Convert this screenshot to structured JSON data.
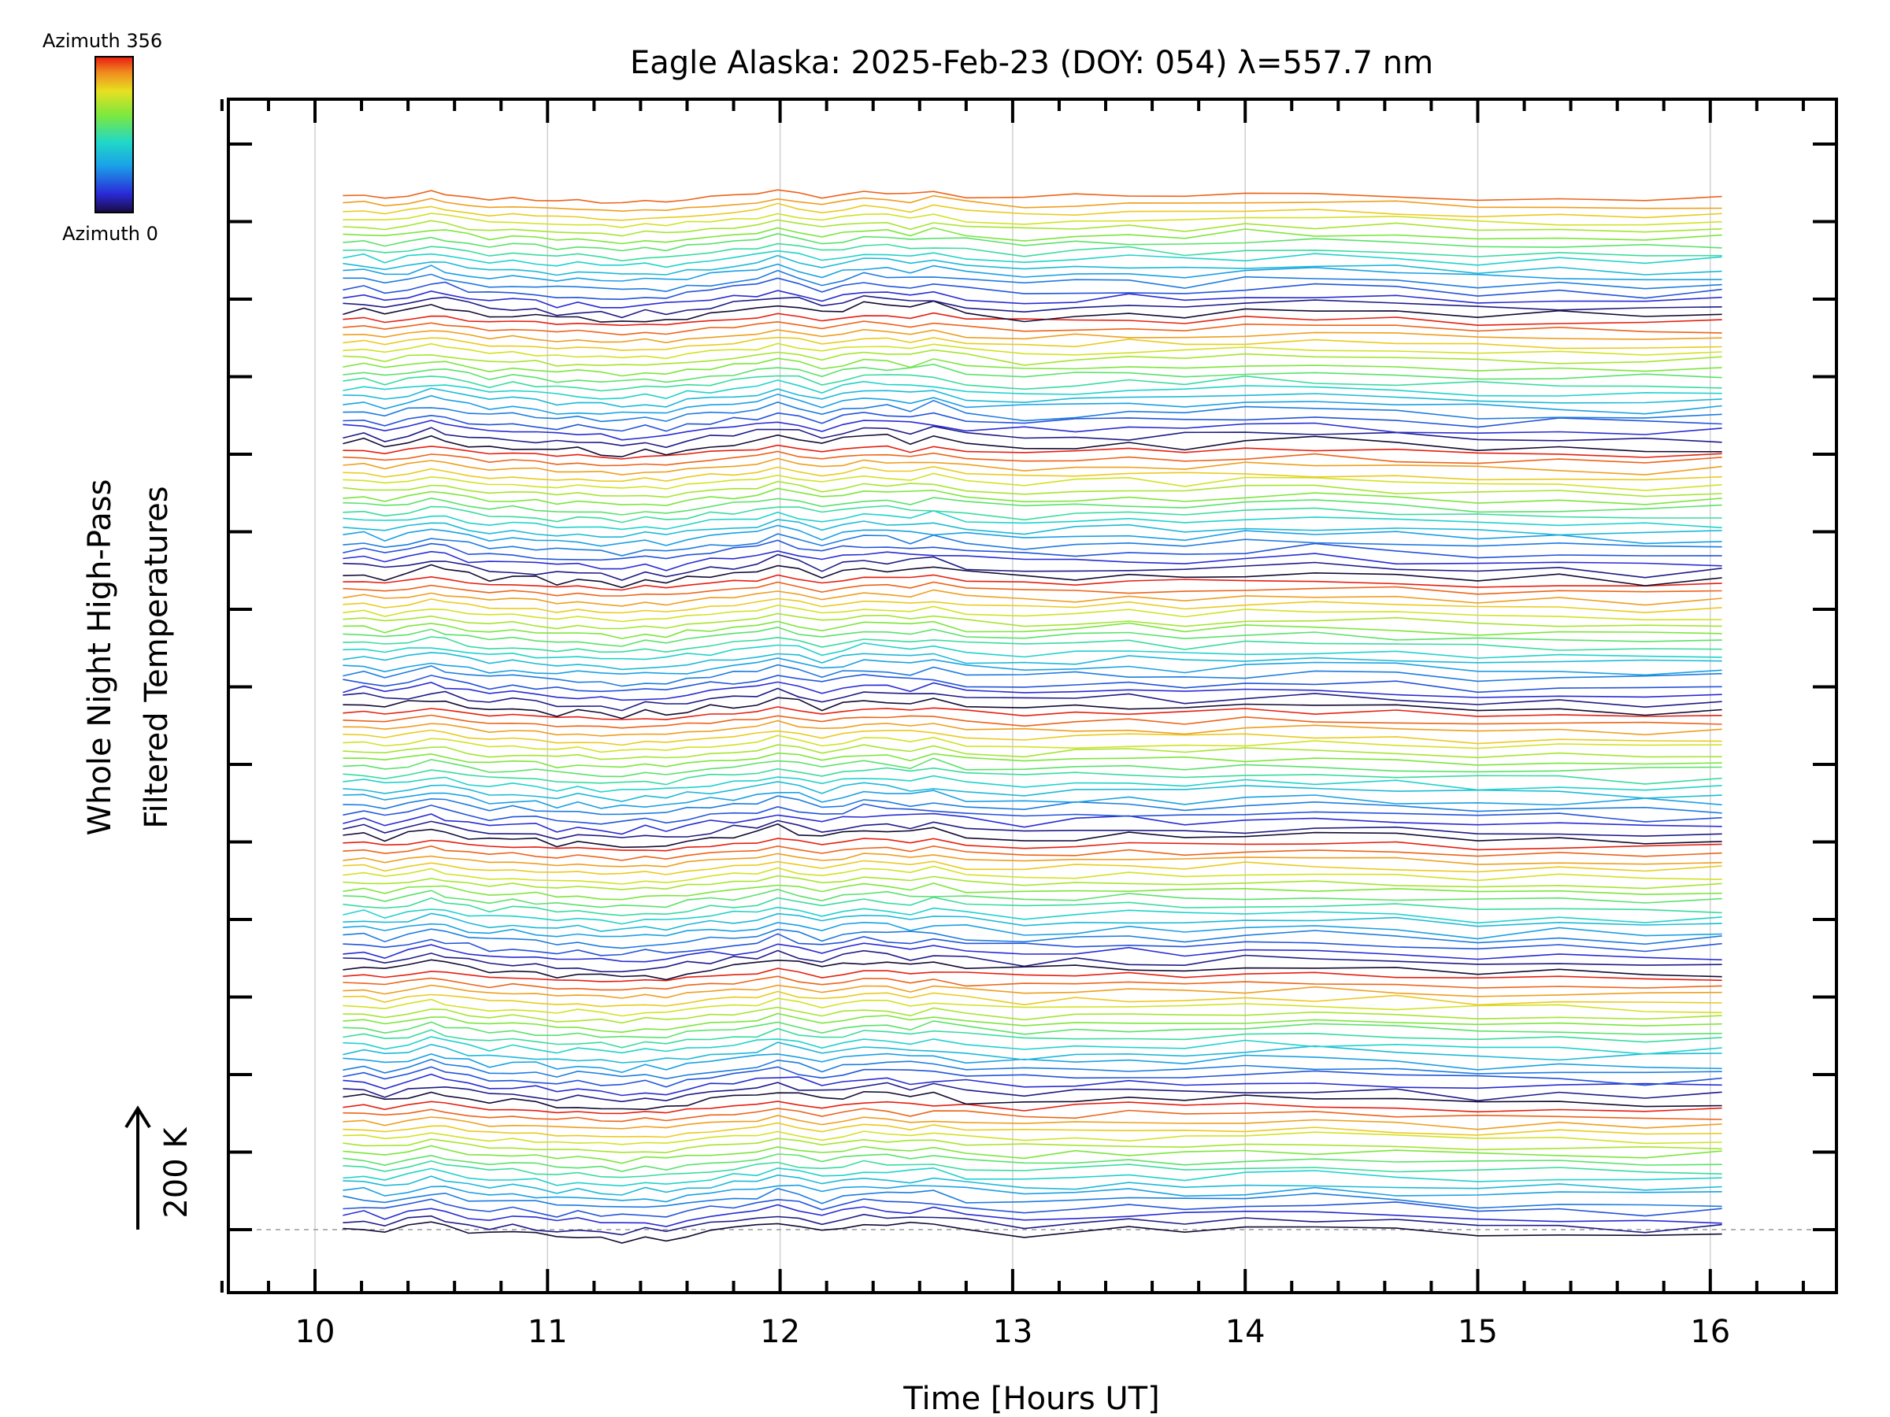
{
  "chart_data": {
    "type": "line",
    "title": "Eagle Alaska: 2025-Feb-23 (DOY: 054) λ=557.7 nm",
    "xlabel": "Time [Hours UT]",
    "ylabel": [
      "Whole Night High-Pass",
      "Filtered Temperatures"
    ],
    "xlim": [
      9.6,
      16.5
    ],
    "xticks": [
      "10",
      "11",
      "12",
      "13",
      "14",
      "15",
      "16"
    ],
    "scale_bar_label": "200 K",
    "legend": {
      "top_label": "Azimuth 356",
      "bottom_label": "Azimuth 0",
      "placement": "top-left",
      "colormap": "rainbow"
    },
    "series_count": 135,
    "groups": 8,
    "series_per_group": 17,
    "azimuth_range": [
      0,
      356
    ],
    "times": [
      10.12,
      10.21,
      10.3,
      10.4,
      10.5,
      10.56,
      10.66,
      10.75,
      10.85,
      10.95,
      11.04,
      11.13,
      11.23,
      11.32,
      11.42,
      11.51,
      11.6,
      11.7,
      11.8,
      11.9,
      11.99,
      12.08,
      12.18,
      12.27,
      12.36,
      12.46,
      12.56,
      12.66,
      12.8,
      13.05,
      13.27,
      13.5,
      13.74,
      14.0,
      14.3,
      14.65,
      15.0,
      15.35,
      15.72,
      16.05
    ],
    "group_pattern": [
      0,
      3,
      -8,
      3,
      15,
      8,
      -3,
      -12,
      -8,
      -12,
      -20,
      -16,
      -22,
      -26,
      -18,
      -22,
      -12,
      -6,
      0,
      6,
      20,
      8,
      -5,
      5,
      15,
      12,
      5,
      15,
      0,
      -10,
      -4,
      0,
      -6,
      2,
      4,
      -2,
      -12,
      -8,
      -15,
      -10
    ],
    "colors": {
      "background": "#ffffff",
      "axes": "#000000",
      "grid": "#d0d0d0",
      "baseline": "#999999"
    }
  }
}
